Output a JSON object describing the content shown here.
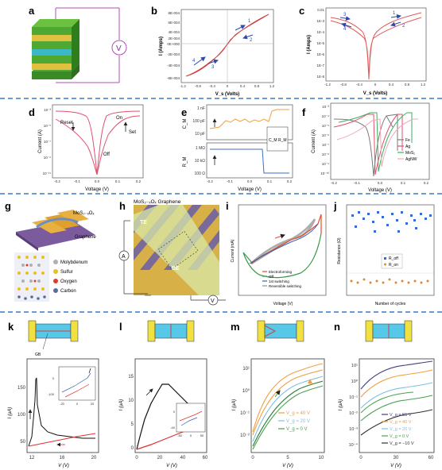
{
  "panels": {
    "a": {
      "label": "a",
      "source_label": "V"
    },
    "b": {
      "label": "b",
      "xlabel": "V_s (Volts)",
      "ylabel": "I (Amps)",
      "yticks": [
        "8E-004",
        "6E-004",
        "4E-004",
        "2E-004",
        "0E+000",
        "-2E-004",
        "-4E-004",
        "-6E-004"
      ],
      "xticks": [
        "-1.2",
        "-0.8",
        "-0.4",
        "0",
        "0.4",
        "0.8",
        "1.2"
      ],
      "arrows": [
        "1",
        "2",
        "3",
        "4"
      ]
    },
    "c": {
      "label": "c",
      "xlabel": "V_s (Volts)",
      "ylabel": "I (Amps)",
      "yticks": [
        "0.01",
        "1E-3",
        "1E-4",
        "1E-5",
        "1E-6",
        "1E-7",
        "1E-8"
      ],
      "xticks": [
        "-1.2",
        "-0.8",
        "-0.4",
        "0",
        "0.4",
        "0.8",
        "1.2"
      ],
      "arrows": [
        "1",
        "2",
        "3",
        "4"
      ]
    },
    "d": {
      "label": "d",
      "xlabel": "Voltage (V)",
      "ylabel": "Current (A)",
      "yticks": [
        "10⁻³",
        "10⁻⁵",
        "10⁻⁷",
        "10⁻⁹",
        "10⁻¹¹"
      ],
      "xticks": [
        "-0.2",
        "-0.1",
        "0.0",
        "0.1",
        "0.2"
      ],
      "annotations": {
        "reset": "Reset",
        "on": "On",
        "set": "Set",
        "off": "Off"
      }
    },
    "e": {
      "label": "e",
      "xlabel": "Voltage (V)",
      "ylabel_top": "C_M",
      "ylabel_bottom": "R_M",
      "yticks_top": [
        "1 nF",
        "100 pF",
        "10 pF"
      ],
      "yticks_bottom": [
        "1 MΩ",
        "10 kΩ",
        "100 Ω"
      ],
      "xticks": [
        "-0.2",
        "-0.1",
        "0.0",
        "0.1",
        "0.2"
      ],
      "inset": {
        "cm": "C_M",
        "rm": "R_M"
      }
    },
    "f": {
      "label": "f",
      "xlabel": "Voltage (V)",
      "ylabel": "Current (A)",
      "yticks": [
        "10⁻³",
        "10⁻⁴",
        "10⁻⁵",
        "10⁻⁶",
        "10⁻⁷",
        "10⁻⁸",
        "10⁻⁹",
        "10⁻¹⁰"
      ],
      "xticks": [
        "-0.2",
        "-0.1",
        "0.0",
        "0.1",
        "0.2"
      ],
      "legend": [
        "Fe",
        "Ag",
        "MoS₂",
        "AgNW"
      ],
      "legend_colors": [
        "#7a7a7a",
        "#e0506e",
        "#3fae5f",
        "#f0a8b8"
      ]
    },
    "g": {
      "label": "g",
      "top_label": "MoS₂₋ₓOₓ",
      "graphene_label": "Graphene",
      "legend": [
        "Molybdenum",
        "Sulfur",
        "Oxygen",
        "Carbon"
      ],
      "legend_colors": [
        "#b0b0b0",
        "#e8c020",
        "#e03c2c",
        "#5a6e9e"
      ]
    },
    "h": {
      "label": "h",
      "top_label": "MoS₂₋ₓOₓ  Graphene",
      "te": "TE",
      "be": "BE",
      "ammeter": "A",
      "source": "V"
    },
    "i": {
      "label": "i",
      "xlabel": "Voltage (V)",
      "ylabel": "Current (mA)",
      "legend": [
        "Electroforming",
        "Off",
        "1st switching",
        "Reversible switching"
      ],
      "legend_colors": [
        "#e0502a",
        "#3a9a4a",
        "#3a5fb0",
        "#909090"
      ]
    },
    "j": {
      "label": "j",
      "xlabel": "Number of cycles",
      "ylabel": "Resistance (Ω)",
      "legend": [
        "R_off",
        "R_on"
      ],
      "legend_colors": [
        "#3a6ad0",
        "#e08a30"
      ]
    },
    "k": {
      "label": "k",
      "xlabel": "V (V)",
      "ylabel": "I (μA)",
      "gb": "GB",
      "yticks": [
        "150",
        "100",
        "50"
      ],
      "xticks": [
        "12",
        "16",
        "20"
      ],
      "inset": {
        "yticks": [
          "0",
          "-100"
        ],
        "xticks": [
          "-20",
          "0",
          "20"
        ]
      }
    },
    "l": {
      "label": "l",
      "xlabel": "V (V)",
      "ylabel": "I (μA)",
      "yticks": [
        "15",
        "10",
        "5",
        "0"
      ],
      "xticks": [
        "0",
        "20",
        "40",
        "60"
      ],
      "inset": {
        "yticks": [
          "0",
          "-40"
        ],
        "xticks": [
          "-50",
          "0",
          "50"
        ]
      }
    },
    "m": {
      "label": "m",
      "xlabel": "V (V)",
      "ylabel": "I (μA)",
      "yticks": [
        "10¹",
        "10⁰",
        "10⁻¹",
        "10⁻²"
      ],
      "xticks": [
        "0",
        "5",
        "10"
      ],
      "legend": [
        "V_g = 40 V",
        "V_g = 20 V",
        "V_g = 0 V"
      ],
      "legend_colors": [
        "#f0a040",
        "#7ec0e0",
        "#4aa050"
      ]
    },
    "n": {
      "label": "n",
      "xlabel": "V (V)",
      "ylabel": "I (μA)",
      "yticks": [
        "10¹",
        "10⁰",
        "10⁻¹",
        "10⁻²",
        "10⁻³",
        "10⁻⁴"
      ],
      "xticks": [
        "0",
        "30",
        "60"
      ],
      "legend": [
        "V_g = 55 V",
        "V_g = 40 V",
        "V_g = 20 V",
        "V_g = 0 V",
        "V_g = −10 V"
      ],
      "legend_colors": [
        "#404080",
        "#f0a040",
        "#7ec0e0",
        "#4aa050",
        "#303030"
      ]
    }
  }
}
